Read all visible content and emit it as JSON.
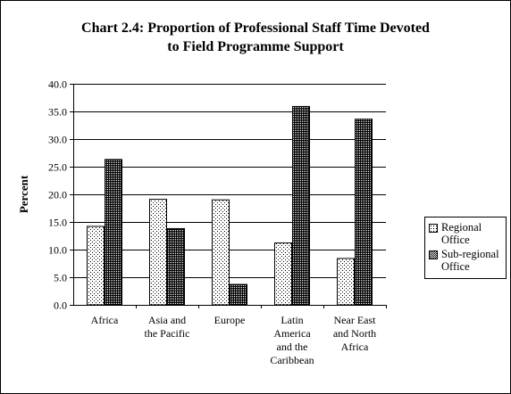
{
  "chart_data": {
    "type": "bar",
    "title": "Chart 2.4:  Proportion of Professional Staff Time Devoted\nto Field Programme Support",
    "ylabel": "Percent",
    "xlabel": "",
    "ylim": [
      0,
      40
    ],
    "ytick_step": 5,
    "ytick_labels": [
      "0.0",
      "5.0",
      "10.0",
      "15.0",
      "20.0",
      "25.0",
      "30.0",
      "35.0",
      "40.0"
    ],
    "grid": true,
    "legend_position": "right",
    "categories": [
      "Africa",
      "Asia and\nthe Pacific",
      "Europe",
      "Latin\nAmerica\nand the\nCaribbean",
      "Near East\nand North\nAfrica"
    ],
    "series": [
      {
        "name": "Regional\nOffice",
        "values": [
          14.2,
          19.1,
          19.0,
          11.2,
          8.4
        ],
        "pattern": "dots-light",
        "color": "#ffffff"
      },
      {
        "name": "Sub-regional\nOffice",
        "values": [
          26.3,
          13.8,
          3.7,
          35.9,
          33.6
        ],
        "pattern": "dots-dark",
        "color": "#000000"
      }
    ]
  }
}
